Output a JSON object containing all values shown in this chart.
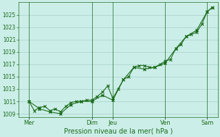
{
  "xlabel": "Pression niveau de la mer( hPa )",
  "bg_color": "#cceee8",
  "grid_color": "#aad4ce",
  "line_color": "#1a6b1a",
  "ylim": [
    1008.5,
    1027.0
  ],
  "yticks": [
    1009,
    1011,
    1013,
    1015,
    1017,
    1019,
    1021,
    1023,
    1025
  ],
  "xlim": [
    0,
    228
  ],
  "xtick_positions": [
    12,
    84,
    108,
    168,
    216
  ],
  "xtick_labels": [
    "Mer",
    "Dim",
    "Jeu",
    "Ven",
    "Sam"
  ],
  "vline_positions": [
    12,
    84,
    108,
    168,
    216
  ],
  "series1_x": [
    12,
    18,
    24,
    30,
    36,
    42,
    48,
    54,
    60,
    66,
    72,
    78,
    84,
    90,
    96,
    102,
    108,
    114,
    120,
    126,
    132,
    138,
    144,
    150,
    156,
    162,
    168,
    174,
    180,
    186,
    192,
    198,
    204,
    210,
    216,
    222
  ],
  "series1_y": [
    1011.0,
    1009.5,
    1010.0,
    1010.2,
    1009.5,
    1009.8,
    1009.3,
    1010.2,
    1010.8,
    1011.0,
    1011.0,
    1011.2,
    1011.2,
    1011.8,
    1012.5,
    1013.5,
    1011.5,
    1013.0,
    1014.5,
    1015.0,
    1016.5,
    1016.8,
    1016.8,
    1016.5,
    1016.5,
    1017.0,
    1017.5,
    1017.8,
    1019.5,
    1020.2,
    1021.5,
    1021.8,
    1022.2,
    1023.5,
    1025.5,
    1026.2
  ],
  "series2_x": [
    12,
    24,
    36,
    48,
    60,
    72,
    84,
    96,
    108,
    120,
    132,
    144,
    156,
    168,
    180,
    192,
    204,
    216,
    222
  ],
  "series2_y": [
    1011.0,
    1009.8,
    1009.3,
    1009.0,
    1010.5,
    1011.0,
    1011.0,
    1012.0,
    1011.2,
    1014.5,
    1016.5,
    1016.2,
    1016.5,
    1017.2,
    1019.5,
    1021.5,
    1022.5,
    1025.5,
    1026.2
  ]
}
